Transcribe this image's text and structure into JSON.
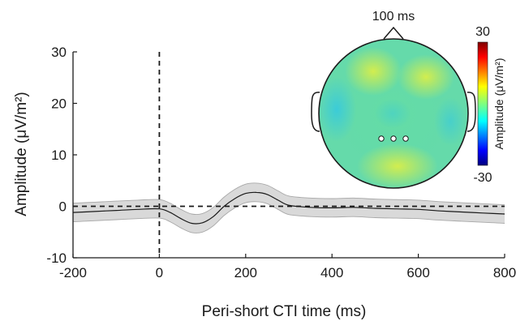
{
  "chart_data": {
    "type": "line",
    "xlabel": "Peri-short CTI time (ms)",
    "ylabel": "Amplitude (μV/m²)",
    "xlim": [
      -200,
      800
    ],
    "ylim": [
      -10,
      30
    ],
    "x_ticks": [
      "-200",
      "0",
      "200",
      "400",
      "600",
      "800"
    ],
    "y_ticks": [
      "-10",
      "0",
      "10",
      "20",
      "30"
    ],
    "x_tick_values": [
      -200,
      0,
      200,
      400,
      600,
      800
    ],
    "y_tick_values": [
      -10,
      0,
      10,
      20,
      30
    ],
    "event_line_x": 0,
    "reference_line_y": 0,
    "series": [
      {
        "x": [
          -200,
          -150,
          -100,
          -50,
          0,
          25,
          50,
          75,
          100,
          125,
          150,
          175,
          200,
          225,
          250,
          275,
          300,
          350,
          400,
          450,
          500,
          550,
          600,
          650,
          700,
          750,
          800
        ],
        "values": [
          -1.2,
          -1.0,
          -0.8,
          -0.6,
          -0.5,
          -1.2,
          -2.4,
          -3.3,
          -3.2,
          -2.0,
          0.0,
          1.5,
          2.5,
          2.7,
          2.3,
          1.2,
          0.2,
          -0.2,
          -0.3,
          -0.2,
          -0.4,
          -0.5,
          -0.6,
          -0.9,
          -1.1,
          -1.3,
          -1.5
        ],
        "ci_halfwidth": 1.8,
        "color": "#1a1a1a",
        "band_color": "#d9d9d9"
      }
    ],
    "inset_topography": {
      "title": "100 ms",
      "colorbar_label": "Amplitude (μV/m²)",
      "colorbar_max": "30",
      "colorbar_min": "-30",
      "colormap": "jet",
      "electrode_markers": 3
    }
  }
}
